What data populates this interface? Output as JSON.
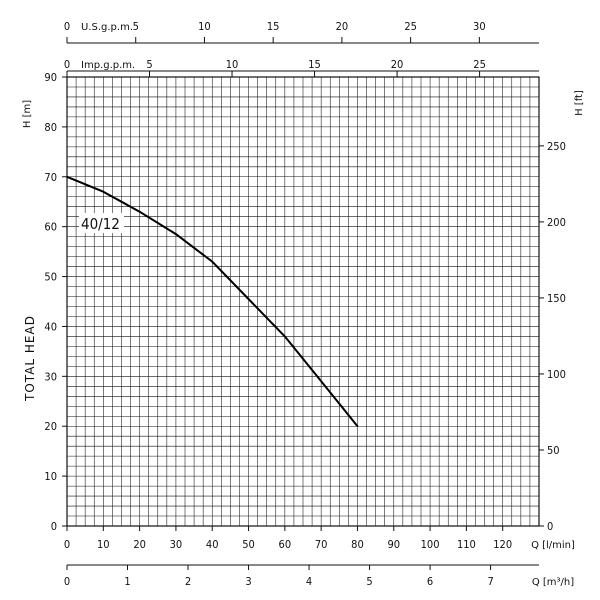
{
  "chart_data": {
    "type": "line",
    "series": [
      {
        "name": "40/12",
        "x": [
          0,
          10,
          20,
          30,
          40,
          50,
          60,
          70,
          80
        ],
        "y": [
          70,
          67,
          63,
          58.5,
          53,
          45.5,
          38,
          29,
          20
        ]
      }
    ],
    "ylabel": "TOTAL HEAD",
    "grid": true,
    "axes": {
      "flow_l_min": {
        "label": "Q [l/min]",
        "range": [
          0,
          130
        ],
        "ticks": [
          "0",
          "10",
          "20",
          "30",
          "40",
          "50",
          "60",
          "70",
          "80",
          "90",
          "100",
          "110",
          "120"
        ]
      },
      "flow_m3_h": {
        "label": "Q [m³/h]",
        "range": [
          0,
          7.8
        ],
        "ticks": [
          "0",
          "1",
          "2",
          "3",
          "4",
          "5",
          "6",
          "7"
        ]
      },
      "flow_us_gpm": {
        "label": "U.S.g.p.m.",
        "range": [
          0,
          34.34
        ],
        "ticks": [
          "0",
          "5",
          "10",
          "15",
          "20",
          "25",
          "30"
        ]
      },
      "flow_imp_gpm": {
        "label": "Imp.g.p.m.",
        "range": [
          0,
          28.6
        ],
        "ticks": [
          "0",
          "5",
          "10",
          "15",
          "20",
          "25"
        ]
      },
      "head_m": {
        "label": "H [m]",
        "range": [
          0,
          90
        ],
        "ticks": [
          "0",
          "10",
          "20",
          "30",
          "40",
          "50",
          "60",
          "70",
          "80",
          "90"
        ]
      },
      "head_ft": {
        "label": "H [ft]",
        "range": [
          0,
          295.3
        ],
        "ticks": [
          "0",
          "50",
          "100",
          "150",
          "200",
          "250"
        ]
      }
    }
  }
}
